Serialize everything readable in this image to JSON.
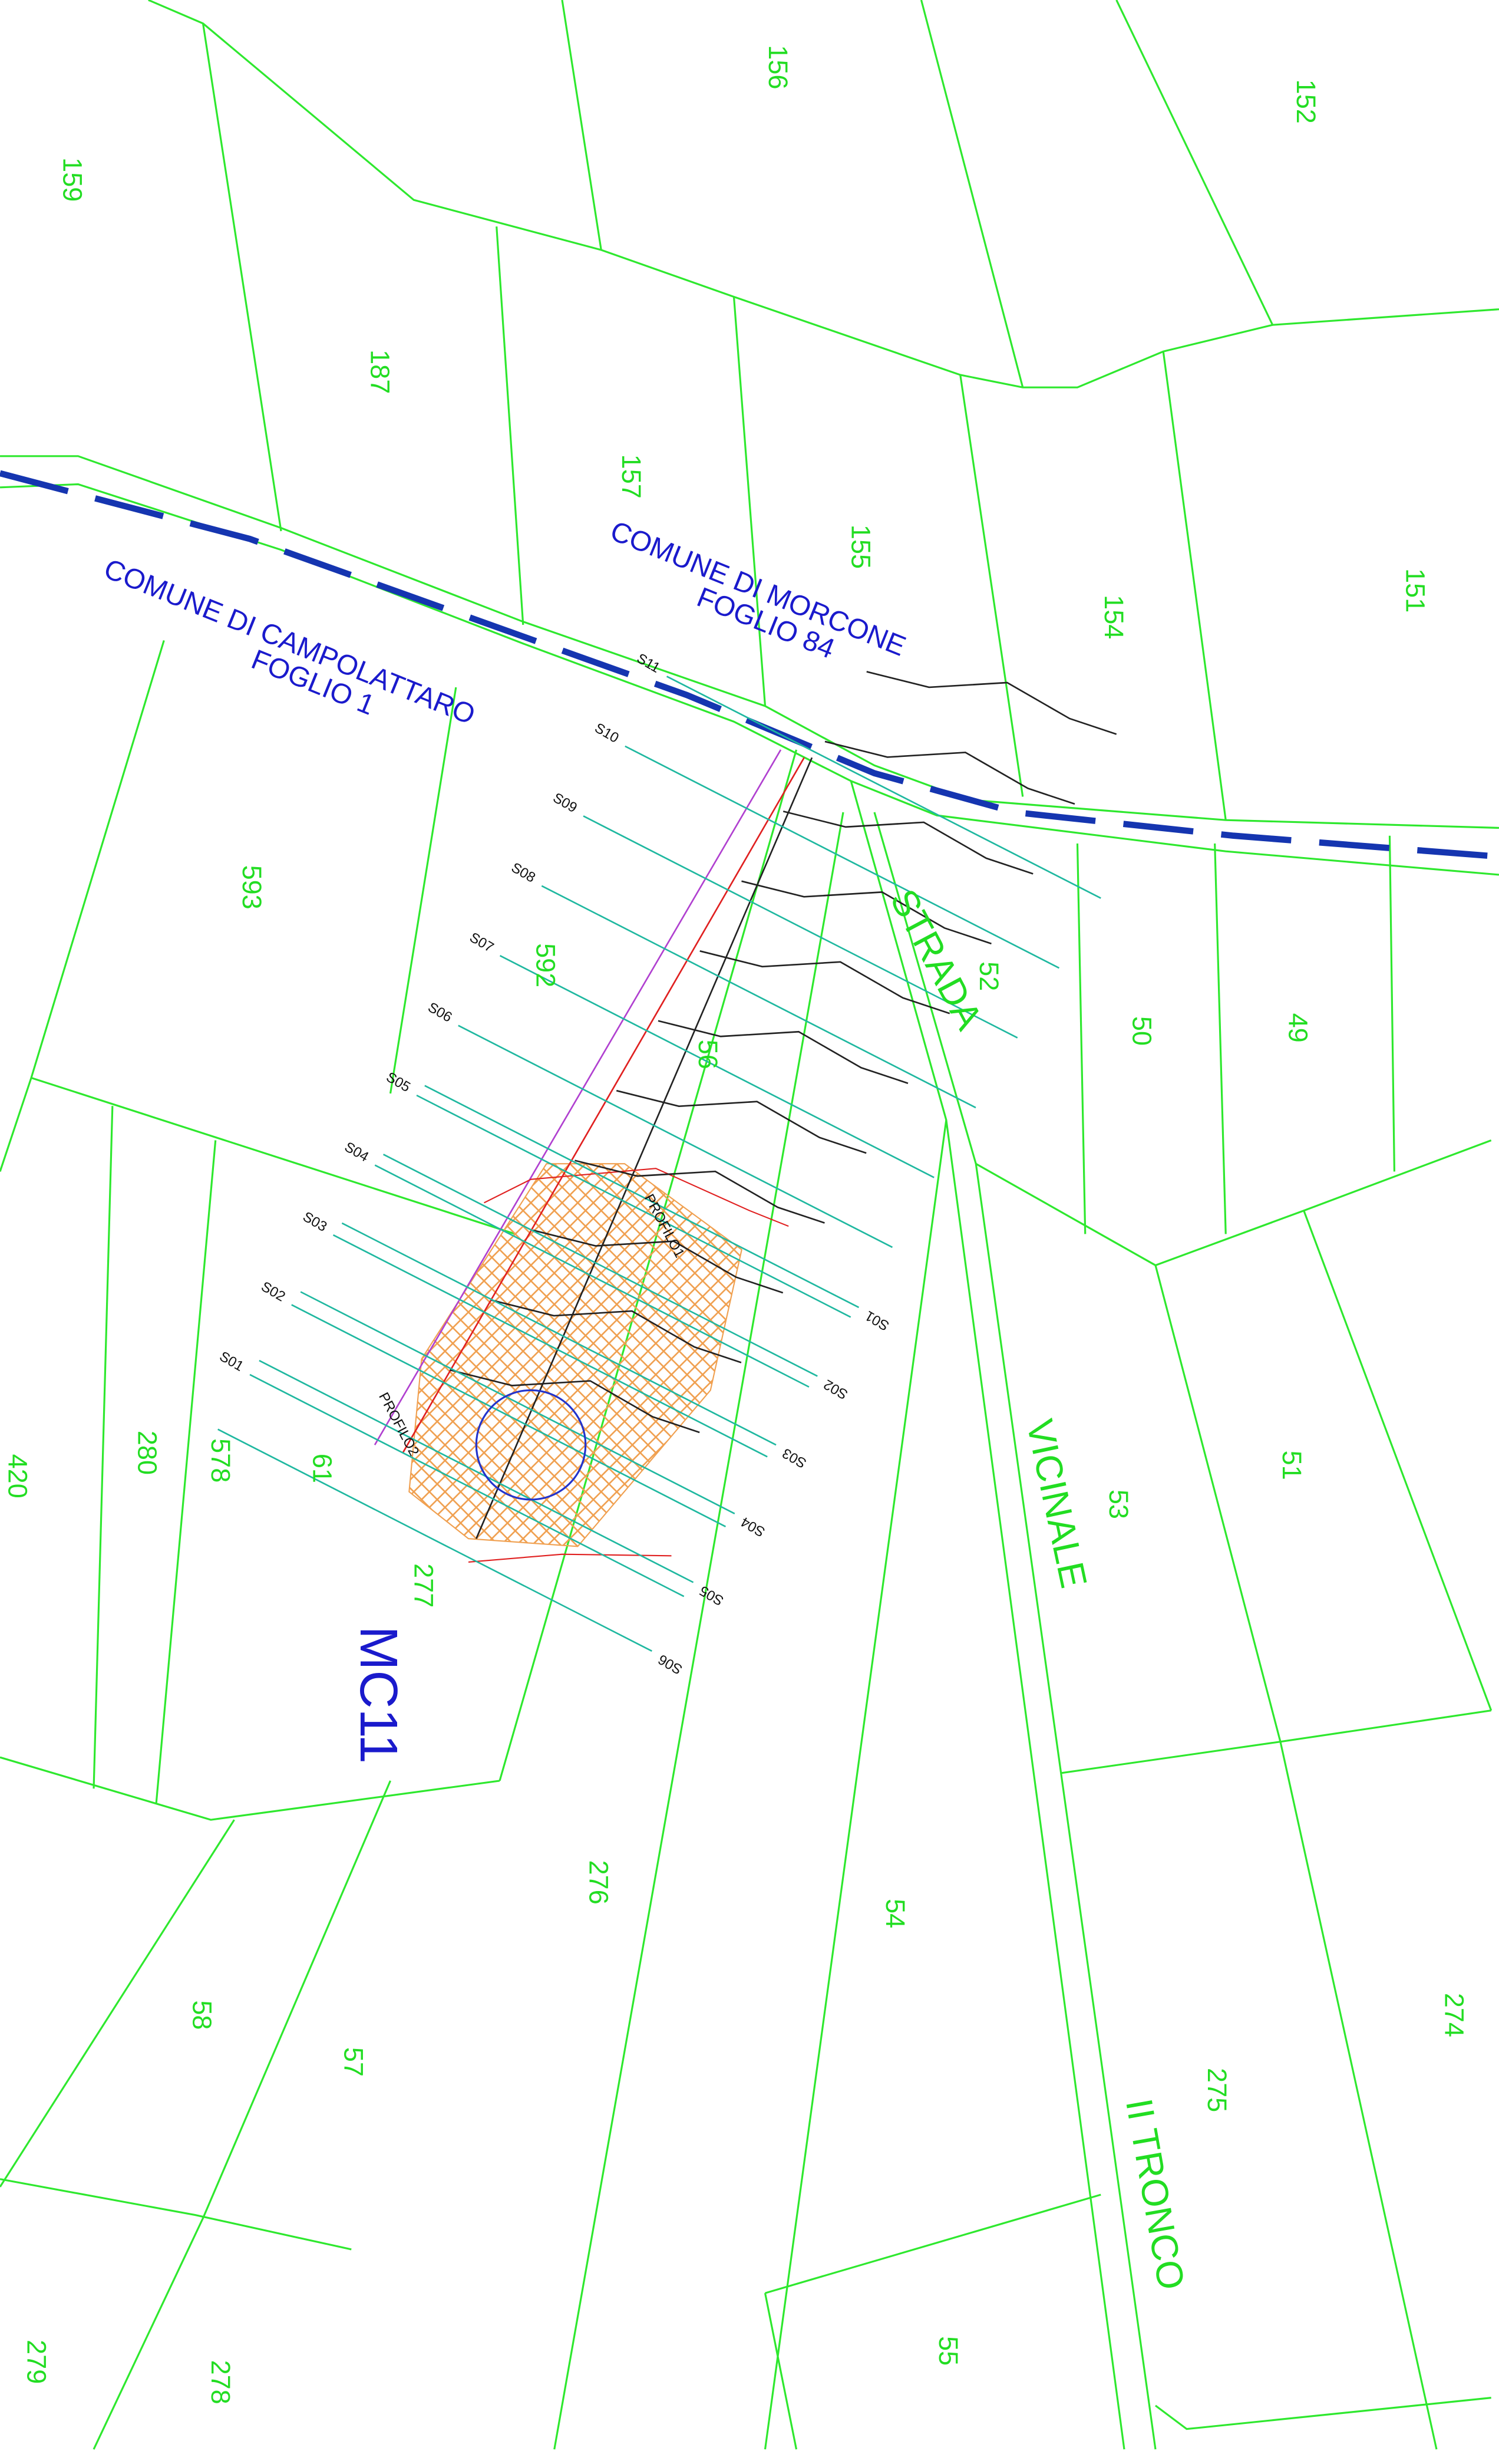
{
  "parcels": [
    "159",
    "156",
    "152",
    "187",
    "157",
    "155",
    "154",
    "151",
    "593",
    "592",
    "56",
    "52",
    "50",
    "49",
    "420",
    "280",
    "578",
    "61",
    "277",
    "53",
    "51",
    "276",
    "54",
    "274",
    "275",
    "58",
    "57",
    "279",
    "278",
    "55"
  ],
  "areas": [
    "COMUNE DI MORCONE",
    "FOGLIO 84",
    "COMUNE DI CAMPOLATTARO",
    "FOGLIO 1"
  ],
  "road": [
    "STRADA",
    "VICINALE",
    "II TRONCO"
  ],
  "site": "MC11",
  "sections_left": [
    "S01",
    "S02",
    "S03",
    "S04",
    "S05",
    "S06",
    "S07",
    "S08",
    "S09",
    "S10",
    "S11"
  ],
  "sections_right": [
    "S01",
    "S02",
    "S03",
    "S04",
    "S05",
    "S06"
  ],
  "profiles": [
    "PROFILO1",
    "PROFILO2"
  ]
}
